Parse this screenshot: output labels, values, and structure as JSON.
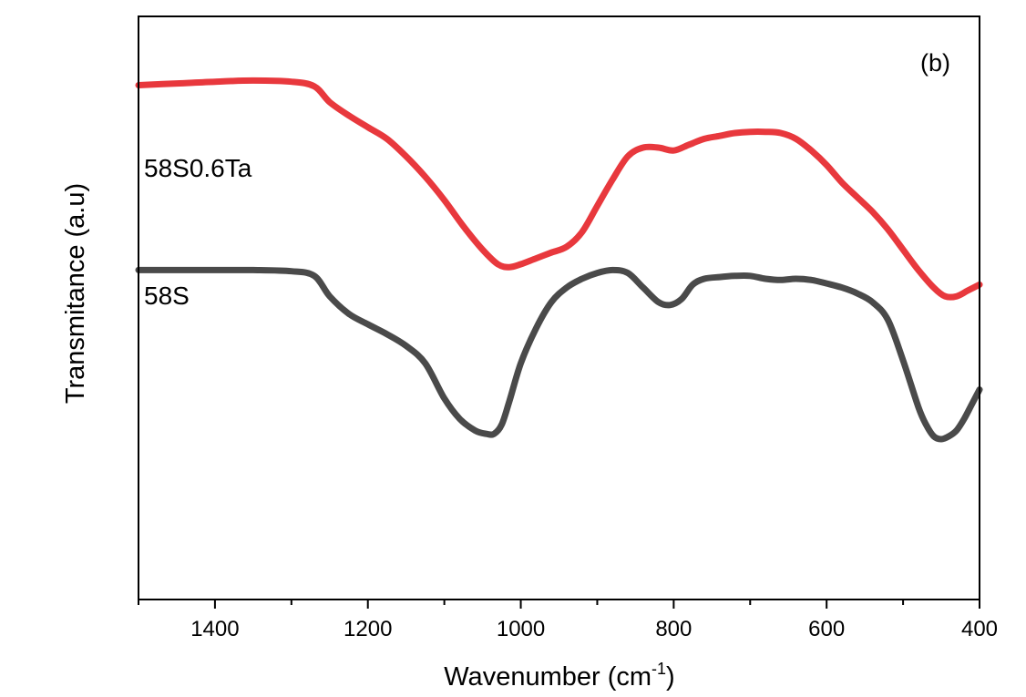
{
  "chart_data": {
    "type": "line",
    "panel_label": "(b)",
    "xlabel": "Wavenumber (cm",
    "xlabel_sup": "-1",
    "xlabel_close": ")",
    "ylabel": "Transmitance (a.u)",
    "xlim": [
      1500,
      400
    ],
    "x_reversed": true,
    "ylim": [
      0,
      1
    ],
    "y_ticks_shown": false,
    "x_ticks": [
      1400,
      1200,
      1000,
      800,
      600,
      400
    ],
    "x_tick_labels": [
      "1400",
      "1200",
      "1000",
      "800",
      "600",
      "400"
    ],
    "grid": false,
    "legend": "none",
    "series": [
      {
        "name": "58S0.6Ta",
        "color": "#e8383d",
        "x": [
          1500,
          1450,
          1400,
          1350,
          1300,
          1270,
          1250,
          1225,
          1200,
          1175,
          1150,
          1125,
          1100,
          1075,
          1050,
          1030,
          1015,
          1000,
          980,
          960,
          940,
          920,
          900,
          880,
          860,
          840,
          820,
          800,
          780,
          760,
          740,
          720,
          700,
          680,
          660,
          640,
          620,
          600,
          580,
          560,
          540,
          520,
          500,
          480,
          460,
          445,
          430,
          415,
          400
        ],
        "y": [
          0.882,
          0.885,
          0.888,
          0.89,
          0.888,
          0.88,
          0.853,
          0.83,
          0.81,
          0.79,
          0.76,
          0.725,
          0.685,
          0.64,
          0.6,
          0.575,
          0.57,
          0.575,
          0.585,
          0.595,
          0.605,
          0.63,
          0.675,
          0.72,
          0.76,
          0.775,
          0.775,
          0.77,
          0.78,
          0.79,
          0.795,
          0.8,
          0.802,
          0.802,
          0.8,
          0.79,
          0.77,
          0.745,
          0.715,
          0.69,
          0.665,
          0.635,
          0.6,
          0.565,
          0.535,
          0.52,
          0.52,
          0.53,
          0.54
        ]
      },
      {
        "name": "58S",
        "color": "#4a4a4a",
        "x": [
          1500,
          1450,
          1400,
          1350,
          1300,
          1270,
          1250,
          1225,
          1200,
          1175,
          1150,
          1125,
          1100,
          1080,
          1060,
          1045,
          1035,
          1025,
          1015,
          1000,
          980,
          960,
          940,
          920,
          900,
          880,
          860,
          840,
          820,
          805,
          790,
          775,
          760,
          740,
          720,
          700,
          680,
          660,
          640,
          620,
          600,
          580,
          560,
          540,
          520,
          500,
          480,
          470,
          460,
          450,
          440,
          430,
          420,
          410,
          400
        ],
        "y": [
          0.565,
          0.565,
          0.565,
          0.565,
          0.563,
          0.555,
          0.52,
          0.49,
          0.472,
          0.455,
          0.435,
          0.405,
          0.345,
          0.31,
          0.29,
          0.284,
          0.284,
          0.3,
          0.34,
          0.405,
          0.465,
          0.51,
          0.535,
          0.55,
          0.56,
          0.565,
          0.56,
          0.535,
          0.51,
          0.505,
          0.515,
          0.54,
          0.55,
          0.553,
          0.555,
          0.555,
          0.55,
          0.548,
          0.55,
          0.548,
          0.542,
          0.535,
          0.525,
          0.51,
          0.48,
          0.41,
          0.33,
          0.3,
          0.28,
          0.275,
          0.28,
          0.29,
          0.31,
          0.335,
          0.36
        ]
      }
    ]
  }
}
